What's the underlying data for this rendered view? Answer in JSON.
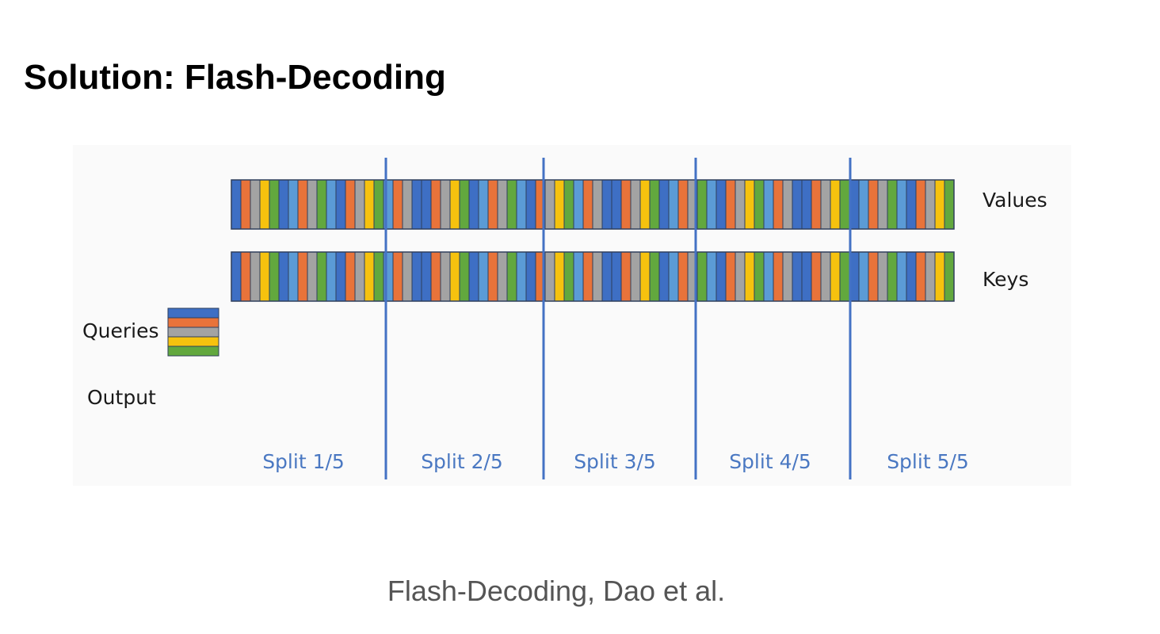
{
  "slide": {
    "title": "Solution: Flash-Decoding",
    "caption": "Flash-Decoding, Dao et al."
  },
  "diagram": {
    "row_labels": {
      "values": "Values",
      "keys": "Keys",
      "queries": "Queries",
      "output": "Output"
    },
    "splits": [
      "Split 1/5",
      "Split 2/5",
      "Split 3/5",
      "Split 4/5",
      "Split 5/5"
    ],
    "token_count": 76,
    "queries_count": 5,
    "colors": {
      "blue": "#3e6fc4",
      "orange": "#e8733a",
      "gray": "#a3a3a3",
      "yellow": "#f6c20e",
      "green": "#62a83e",
      "light_blue": "#5b9bd6",
      "divider": "#4472c4",
      "split_text": "#4a78c2",
      "outline": "#2f3f5c"
    },
    "token_colors": [
      "blue",
      "orange",
      "gray",
      "yellow",
      "green",
      "blue",
      "light_blue",
      "orange",
      "gray",
      "green",
      "light_blue",
      "blue",
      "orange",
      "gray",
      "yellow",
      "green",
      "light_blue",
      "orange",
      "gray",
      "blue"
    ],
    "query_colors": [
      "blue",
      "orange",
      "gray",
      "yellow",
      "green"
    ]
  }
}
